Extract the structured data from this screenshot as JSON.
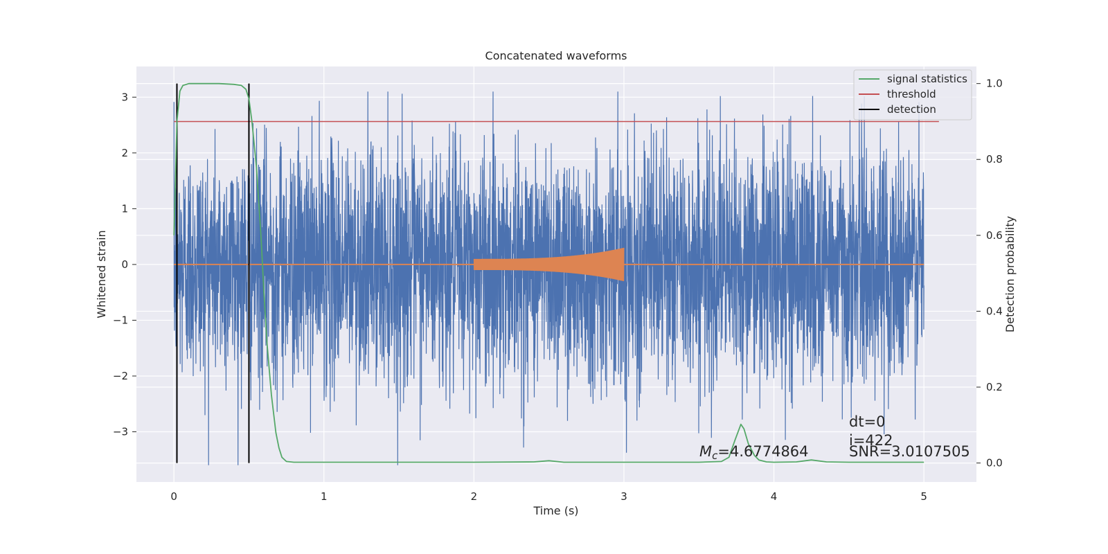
{
  "chart_data": {
    "type": "line",
    "title": "Concatenated waveforms",
    "xlabel": "Time (s)",
    "ylabel": "Whitened strain",
    "y2label": "Detection probability",
    "xlim": [
      -0.25,
      5.35
    ],
    "ylim": [
      -3.9,
      3.55
    ],
    "y2lim": [
      -0.05,
      1.045
    ],
    "xticks": [
      0,
      1,
      2,
      3,
      4,
      5
    ],
    "xtick_labels": [
      "0",
      "1",
      "2",
      "3",
      "4",
      "5"
    ],
    "yticks": [
      -3,
      -2,
      -1,
      0,
      1,
      2,
      3
    ],
    "ytick_labels": [
      "−3",
      "−2",
      "−1",
      "0",
      "1",
      "2",
      "3"
    ],
    "y2ticks": [
      0.0,
      0.2,
      0.4,
      0.6,
      0.8,
      1.0
    ],
    "y2tick_labels": [
      "0.0",
      "0.2",
      "0.4",
      "0.6",
      "0.8",
      "1.0"
    ],
    "grid": true,
    "legend_position": "top-right",
    "colors": {
      "strain": "#4c72b0",
      "template": "#dd8452",
      "signal_statistics": "#55a868",
      "threshold": "#c44e52",
      "detection": "#000000",
      "background": "#eaeaf2",
      "grid": "#ffffff"
    },
    "series": [
      {
        "name": "signal statistics",
        "axis": "right",
        "x": [
          0.0,
          0.02,
          0.04,
          0.06,
          0.1,
          0.2,
          0.3,
          0.4,
          0.45,
          0.48,
          0.5,
          0.52,
          0.55,
          0.58,
          0.6,
          0.62,
          0.65,
          0.68,
          0.7,
          0.72,
          0.75,
          0.8,
          1.0,
          1.5,
          2.0,
          2.4,
          2.5,
          2.55,
          2.6,
          2.7,
          3.0,
          3.5,
          3.65,
          3.7,
          3.74,
          3.78,
          3.8,
          3.83,
          3.87,
          3.9,
          3.95,
          4.0,
          4.15,
          4.25,
          4.35,
          4.5,
          5.0
        ],
        "y": [
          0.6,
          0.9,
          0.98,
          0.995,
          1.0,
          1.0,
          1.0,
          0.998,
          0.995,
          0.985,
          0.96,
          0.9,
          0.78,
          0.6,
          0.45,
          0.32,
          0.18,
          0.08,
          0.04,
          0.015,
          0.004,
          0.002,
          0.002,
          0.002,
          0.002,
          0.003,
          0.006,
          0.004,
          0.002,
          0.002,
          0.002,
          0.002,
          0.004,
          0.015,
          0.06,
          0.102,
          0.09,
          0.05,
          0.02,
          0.008,
          0.003,
          0.002,
          0.003,
          0.008,
          0.003,
          0.002,
          0.002
        ]
      },
      {
        "name": "threshold",
        "axis": "right",
        "x": [
          0.0,
          5.1
        ],
        "y": [
          0.9,
          0.9
        ]
      },
      {
        "name": "detection",
        "axis": "right",
        "x": [
          0.02,
          0.02,
          0.5,
          0.5
        ],
        "y": [
          0.0,
          1.0,
          0.0,
          1.0
        ]
      },
      {
        "name": "",
        "axis": "left",
        "description_x_range": [
          0.0,
          5.0
        ],
        "y_range": [
          -3.6,
          3.1
        ]
      },
      {
        "name": "",
        "axis": "left",
        "x_range": [
          2.0,
          3.0
        ],
        "envelope_start": 0.1,
        "envelope_end": 0.3
      }
    ],
    "annotations": {
      "chirp_mass": "=4.6774864",
      "dt": "dt=0",
      "index": "i=422",
      "snr": "SNR=3.0107505"
    }
  }
}
